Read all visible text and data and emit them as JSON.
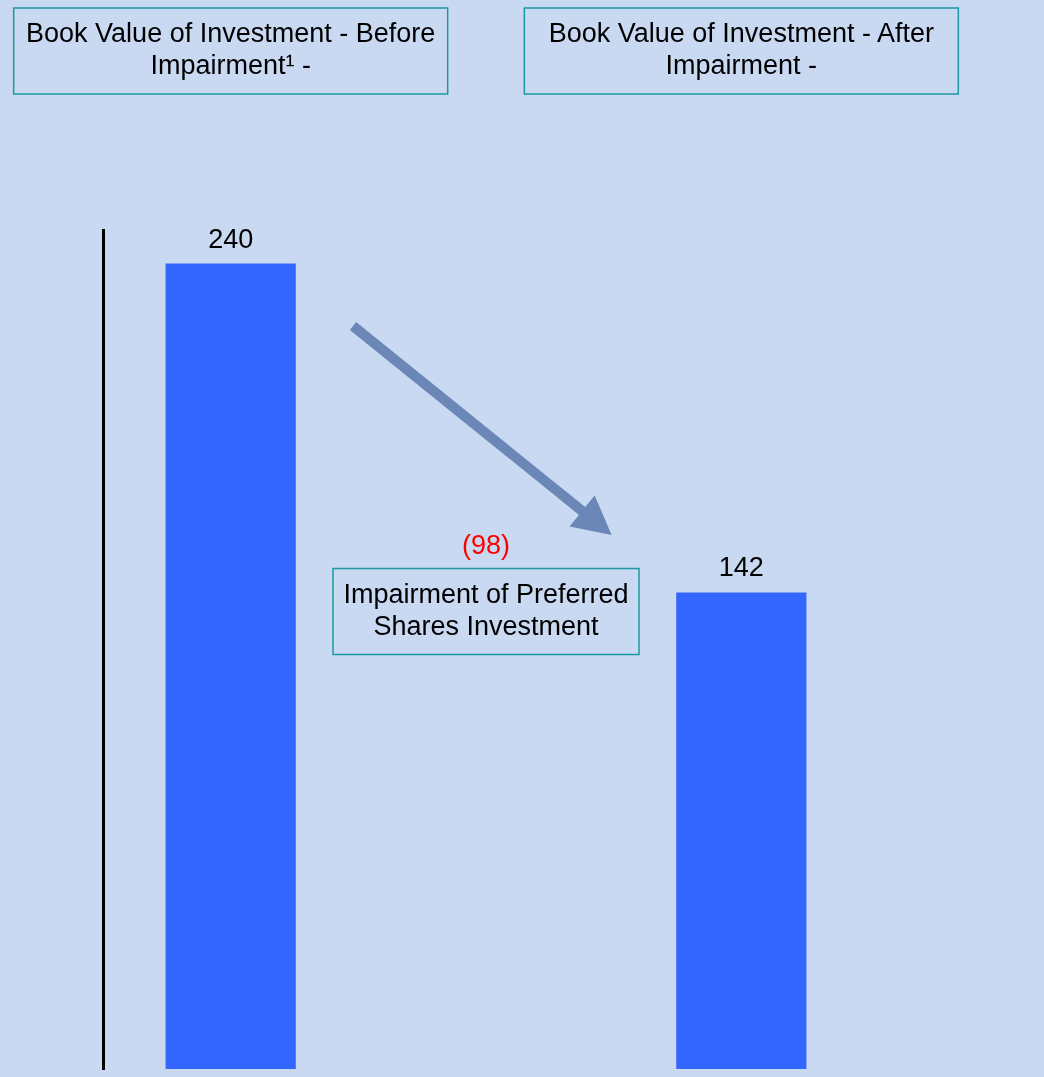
{
  "chart_data": {
    "type": "bar",
    "categories": [
      "Book Value of Investment - Before Impairment¹ -",
      "Impairment of Preferred Shares Investment",
      "Book Value of Investment - After Impairment -"
    ],
    "values": [
      240,
      null,
      142
    ],
    "color": "#3366ff",
    "data_labels": true,
    "annotations": [
      "(98)"
    ],
    "grid": false,
    "legend": false
  }
}
